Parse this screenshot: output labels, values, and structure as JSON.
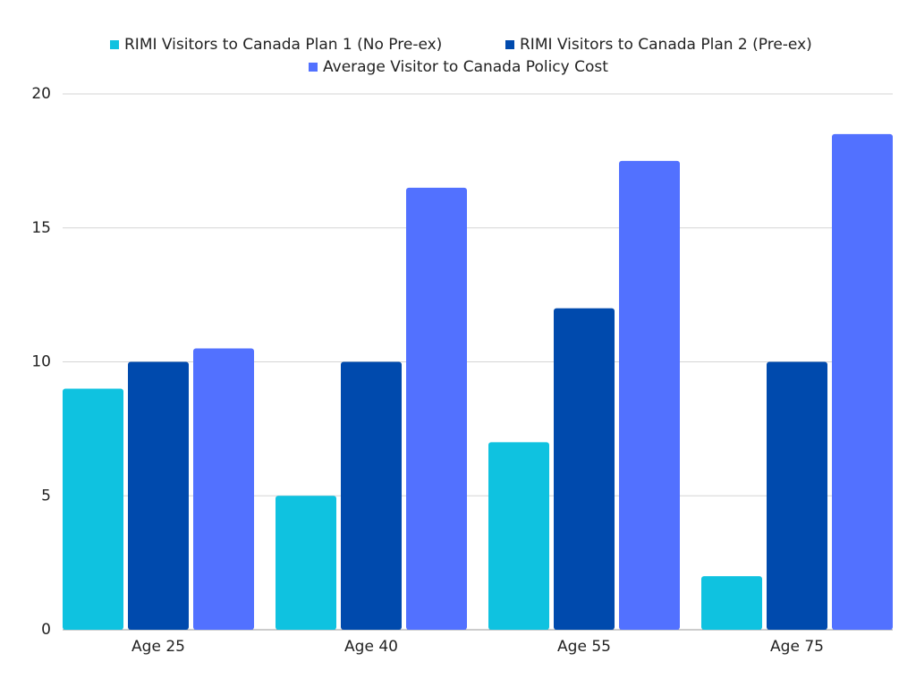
{
  "chart_data": {
    "type": "bar",
    "categories": [
      "Age 25",
      "Age 40",
      "Age 55",
      "Age 75"
    ],
    "series": [
      {
        "name": "RIMI Visitors to Canada Plan 1 (No Pre-ex)",
        "color": "#0fc2e0",
        "values": [
          9,
          5,
          7,
          2
        ]
      },
      {
        "name": "RIMI Visitors to Canada Plan 2 (Pre-ex)",
        "color": "#004aad",
        "values": [
          10,
          10,
          12,
          10
        ]
      },
      {
        "name": "Average Visitor to Canada Policy Cost",
        "color": "#5271ff",
        "values": [
          10.5,
          16.5,
          17.5,
          18.5
        ]
      }
    ],
    "ylim": [
      0,
      20
    ],
    "yticks": [
      0,
      5,
      10,
      15,
      20
    ],
    "grid": true,
    "legend": "top"
  }
}
